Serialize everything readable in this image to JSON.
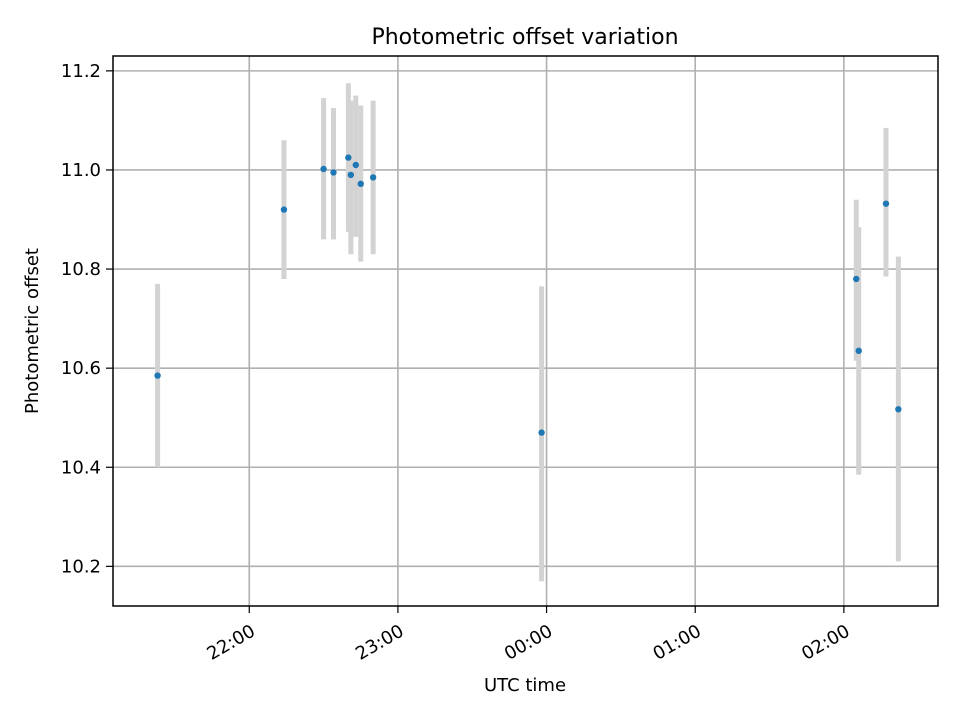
{
  "chart_data": {
    "type": "scatter",
    "title": "Photometric offset variation",
    "xlabel": "UTC time",
    "ylabel": "Photometric offset",
    "xlim": [
      "21:05",
      "02:38"
    ],
    "ylim": [
      10.12,
      11.23
    ],
    "x_ticks": [
      "22:00",
      "23:00",
      "00:00",
      "01:00",
      "02:00"
    ],
    "y_ticks": [
      10.2,
      10.4,
      10.6,
      10.8,
      11.0,
      11.2
    ],
    "grid": true,
    "points": [
      {
        "x": "21:23",
        "y": 10.585,
        "err_low": 10.4,
        "err_high": 10.77
      },
      {
        "x": "22:14",
        "y": 10.92,
        "err_low": 10.78,
        "err_high": 11.06
      },
      {
        "x": "22:30",
        "y": 11.002,
        "err_low": 10.86,
        "err_high": 11.145
      },
      {
        "x": "22:34",
        "y": 10.995,
        "err_low": 10.86,
        "err_high": 11.125
      },
      {
        "x": "22:40",
        "y": 11.025,
        "err_low": 10.875,
        "err_high": 11.175
      },
      {
        "x": "22:41",
        "y": 10.99,
        "err_low": 10.83,
        "err_high": 11.14
      },
      {
        "x": "22:43",
        "y": 11.01,
        "err_low": 10.865,
        "err_high": 11.15
      },
      {
        "x": "22:45",
        "y": 10.972,
        "err_low": 10.815,
        "err_high": 11.13
      },
      {
        "x": "22:50",
        "y": 10.985,
        "err_low": 10.83,
        "err_high": 11.14
      },
      {
        "x": "23:58",
        "y": 10.47,
        "err_low": 10.17,
        "err_high": 10.765
      },
      {
        "x": "02:05",
        "y": 10.78,
        "err_low": 10.615,
        "err_high": 10.94
      },
      {
        "x": "02:06",
        "y": 10.635,
        "err_low": 10.385,
        "err_high": 10.885
      },
      {
        "x": "02:17",
        "y": 10.932,
        "err_low": 10.785,
        "err_high": 11.085
      },
      {
        "x": "02:22",
        "y": 10.517,
        "err_low": 10.21,
        "err_high": 10.825
      }
    ],
    "colors": {
      "point": "#1f77b4",
      "errorbar": "#d3d3d3",
      "grid": "#b0b0b0"
    }
  }
}
